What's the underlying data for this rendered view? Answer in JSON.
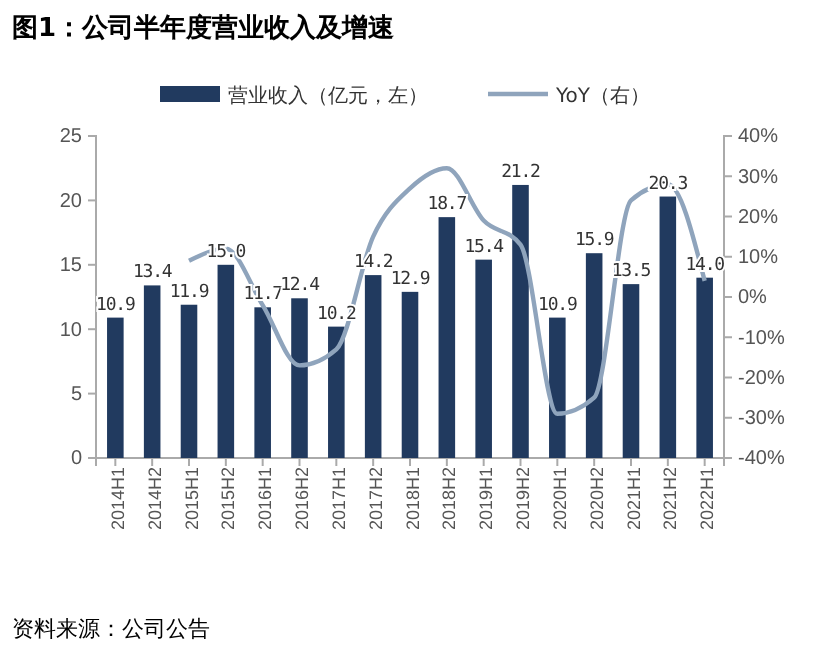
{
  "chart_data": {
    "type": "bar",
    "title": "图1：公司半年度营业收入及增速",
    "categories": [
      "2014H1",
      "2014H2",
      "2015H1",
      "2015H2",
      "2016H1",
      "2016H2",
      "2017H1",
      "2017H2",
      "2018H1",
      "2018H2",
      "2019H1",
      "2019H2",
      "2020H1",
      "2020H2",
      "2021H1",
      "2021H2",
      "2022H1"
    ],
    "series": [
      {
        "name": "营业收入（亿元，左）",
        "color": "#213a5f",
        "values": [
          10.9,
          13.4,
          11.9,
          15.0,
          11.7,
          12.4,
          10.2,
          14.2,
          12.9,
          18.7,
          15.4,
          21.2,
          10.9,
          15.9,
          13.5,
          20.3,
          14.0
        ],
        "value_labels": [
          "10.9",
          "13.4",
          "11.9",
          "15.0",
          "11.7",
          "12.4",
          "10.2",
          "14.2",
          "12.9",
          "18.7",
          "15.4",
          "21.2",
          "10.9",
          "15.9",
          "13.5",
          "20.3",
          "14.0"
        ]
      },
      {
        "name": "YoY（右）",
        "type": "line",
        "axis": "y2",
        "color": "#8fa4bc",
        "values": [
          null,
          null,
          9,
          12,
          -2,
          -17,
          -13,
          15,
          27,
          32,
          19,
          13,
          -29,
          -25,
          24,
          28,
          4
        ]
      }
    ],
    "ylim": [
      0,
      25
    ],
    "yticks": [
      0,
      5,
      10,
      15,
      20,
      25
    ],
    "y2lim": [
      -40,
      40
    ],
    "y2ticks": [
      {
        "value": -40,
        "label": "-40%"
      },
      {
        "value": -30,
        "label": "-30%"
      },
      {
        "value": -20,
        "label": "-20%"
      },
      {
        "value": -10,
        "label": "-10%"
      },
      {
        "value": 0,
        "label": "0%"
      },
      {
        "value": 10,
        "label": "10%"
      },
      {
        "value": 20,
        "label": "20%"
      },
      {
        "value": 30,
        "label": "30%"
      },
      {
        "value": 40,
        "label": "40%"
      }
    ],
    "grid": false,
    "legend": "top",
    "marker": "none",
    "line_style": "solid",
    "annotations": [
      "资料来源：公司公告"
    ]
  }
}
